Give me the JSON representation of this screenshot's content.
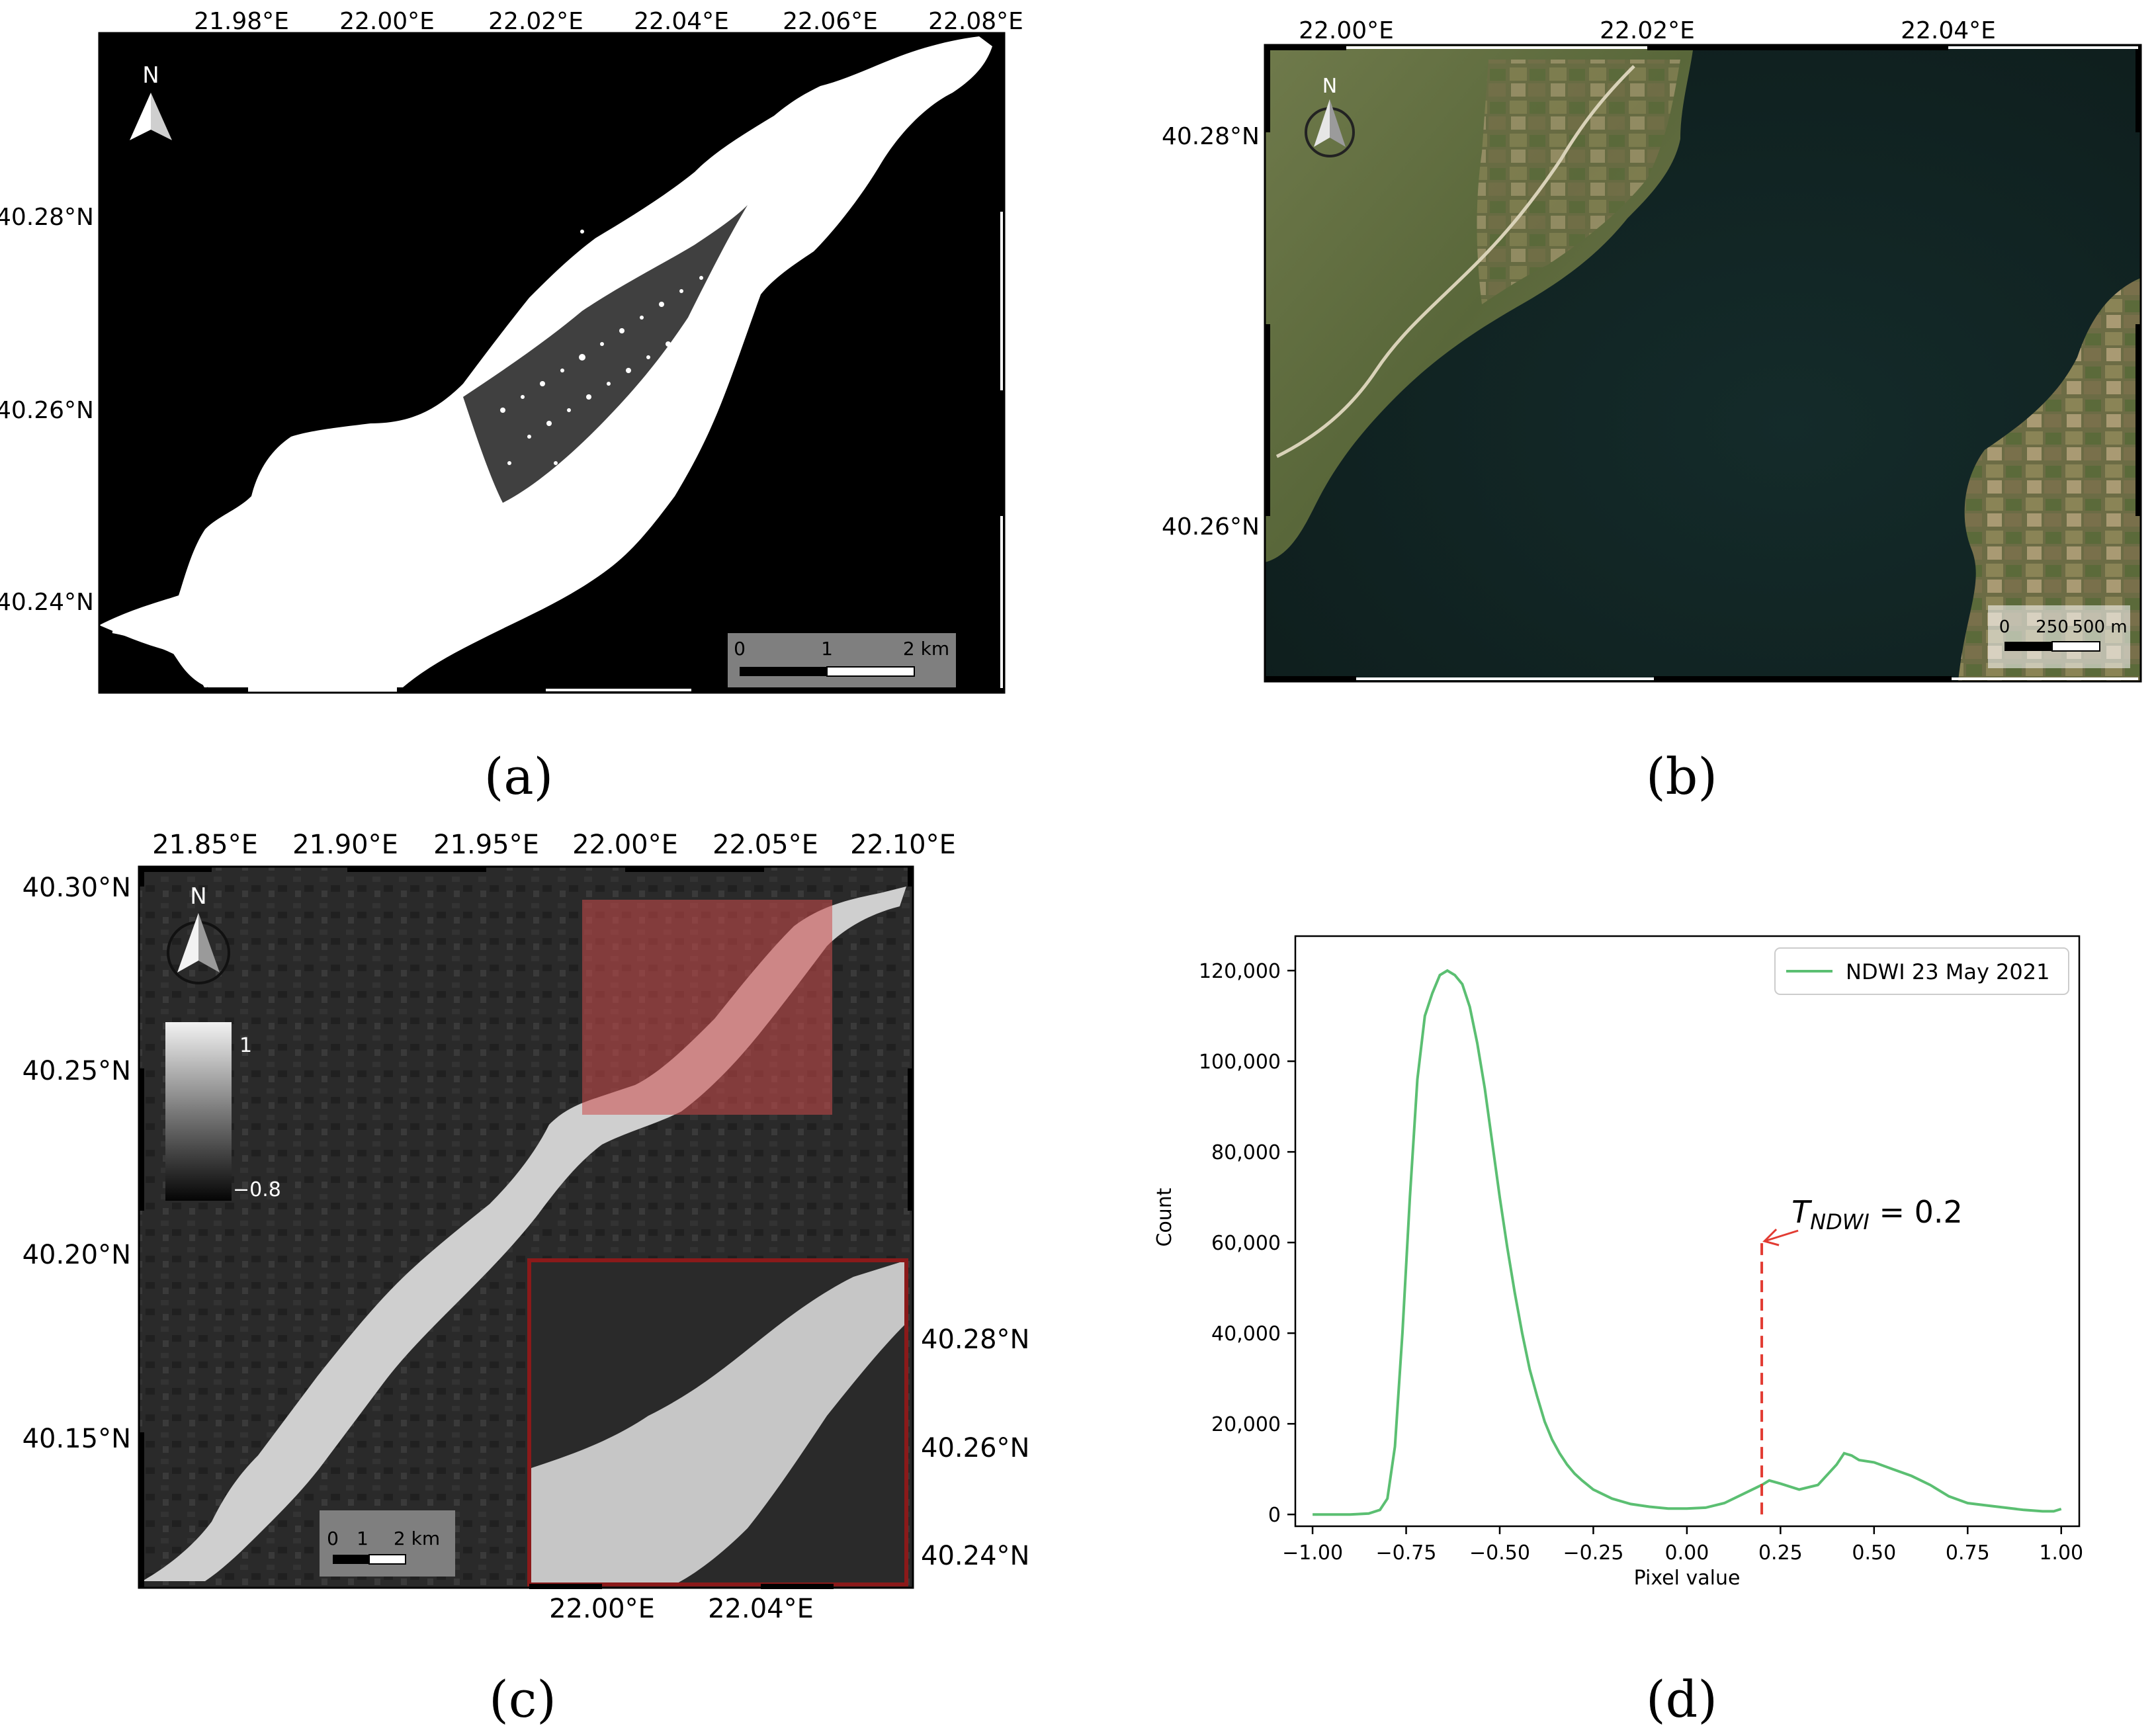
{
  "panels": {
    "a": {
      "label": "(a)",
      "lon_ticks": [
        "21.98°E",
        "22.00°E",
        "22.02°E",
        "22.04°E",
        "22.06°E",
        "22.08°E"
      ],
      "lat_ticks": [
        "40.28°N",
        "40.26°N",
        "40.24°N"
      ],
      "north": "N",
      "scalebar": [
        "0",
        "1",
        "2 km"
      ]
    },
    "b": {
      "label": "(b)",
      "lon_ticks": [
        "22.00°E",
        "22.02°E",
        "22.04°E"
      ],
      "lat_ticks": [
        "40.28°N",
        "40.26°N"
      ],
      "north": "N",
      "scalebar": [
        "0",
        "250",
        "500 m"
      ]
    },
    "c": {
      "label": "(c)",
      "lon_ticks": [
        "21.85°E",
        "21.90°E",
        "21.95°E",
        "22.00°E",
        "22.05°E",
        "22.10°E"
      ],
      "lat_ticks": [
        "40.30°N",
        "40.25°N",
        "40.20°N",
        "40.15°N"
      ],
      "north": "N",
      "colorbar": [
        "1",
        "−0.8"
      ],
      "scalebar": [
        "0",
        "1",
        "2 km"
      ],
      "inset_lat_ticks": [
        "40.28°N",
        "40.26°N",
        "40.24°N"
      ],
      "inset_lon_ticks": [
        "22.00°E",
        "22.04°E"
      ]
    },
    "d": {
      "label": "(d)"
    }
  },
  "chart_data": {
    "type": "line",
    "xlabel": "Pixel value",
    "ylabel": "Count",
    "xlim": [
      -1.0,
      1.0
    ],
    "ylim": [
      0,
      125000
    ],
    "x_ticks": [
      "−1.00",
      "−0.75",
      "−0.50",
      "−0.25",
      "0.00",
      "0.25",
      "0.50",
      "0.75",
      "1.00"
    ],
    "y_ticks": [
      "0",
      "20,000",
      "40,000",
      "60,000",
      "80,000",
      "100,000",
      "120,000"
    ],
    "legend": "top-right",
    "series": [
      {
        "name": "NDWI 23 May 2021",
        "color": "#5bbf72",
        "x": [
          -1.0,
          -0.9,
          -0.85,
          -0.82,
          -0.8,
          -0.78,
          -0.76,
          -0.74,
          -0.72,
          -0.7,
          -0.68,
          -0.66,
          -0.64,
          -0.62,
          -0.6,
          -0.58,
          -0.56,
          -0.54,
          -0.52,
          -0.5,
          -0.48,
          -0.46,
          -0.44,
          -0.42,
          -0.4,
          -0.38,
          -0.36,
          -0.34,
          -0.32,
          -0.3,
          -0.28,
          -0.25,
          -0.2,
          -0.15,
          -0.1,
          -0.05,
          0.0,
          0.05,
          0.1,
          0.15,
          0.2,
          0.22,
          0.25,
          0.3,
          0.35,
          0.4,
          0.42,
          0.44,
          0.46,
          0.5,
          0.55,
          0.6,
          0.65,
          0.7,
          0.75,
          0.8,
          0.85,
          0.9,
          0.95,
          0.98,
          1.0
        ],
        "y": [
          0,
          0,
          200,
          1000,
          3500,
          15000,
          40000,
          70000,
          96000,
          110000,
          115000,
          119000,
          120000,
          119000,
          117000,
          112000,
          104000,
          94000,
          82000,
          70000,
          59000,
          49000,
          40000,
          32000,
          26000,
          20500,
          16500,
          13500,
          11000,
          9000,
          7500,
          5500,
          3500,
          2300,
          1700,
          1300,
          1300,
          1500,
          2500,
          4500,
          6500,
          7500,
          6800,
          5500,
          6500,
          11000,
          13500,
          13000,
          12000,
          11500,
          10000,
          8500,
          6500,
          4000,
          2500,
          2000,
          1500,
          1000,
          700,
          700,
          1200
        ]
      }
    ],
    "threshold": {
      "x": 0.2,
      "y_top": 60000,
      "label_main": "T",
      "label_sub": "NDWI",
      "label_rest": " = 0.2",
      "color": "#e23b32"
    }
  }
}
